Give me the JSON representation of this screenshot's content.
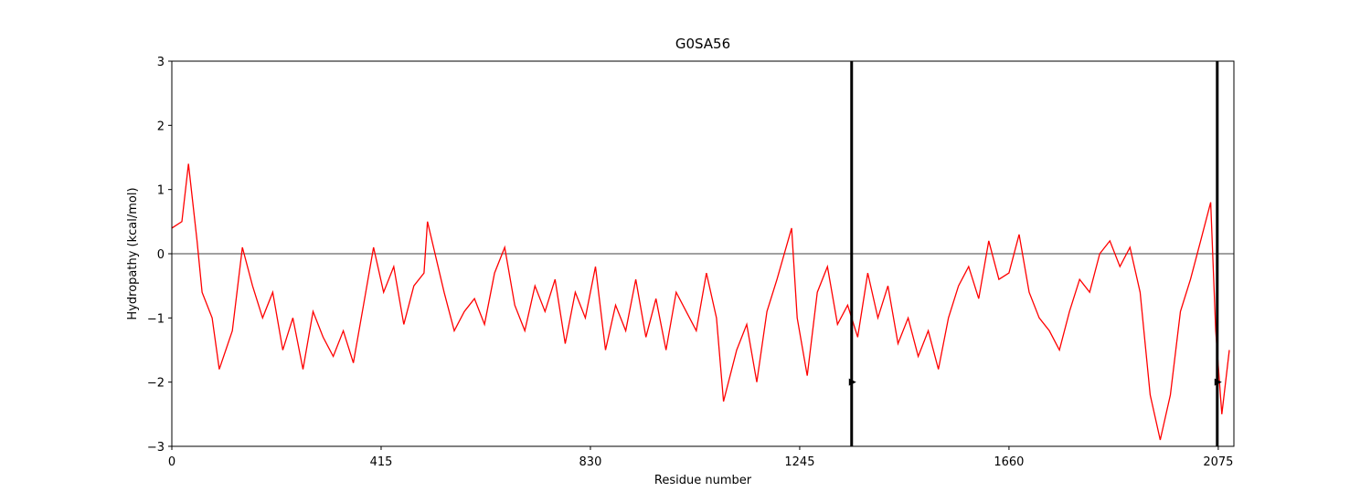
{
  "chart_data": {
    "type": "line",
    "title": "G0SA56",
    "xlabel": "Residue number",
    "ylabel": "Hydropathy (kcal/mol)",
    "x": [
      0,
      20,
      33,
      50,
      60,
      80,
      94,
      120,
      140,
      160,
      180,
      200,
      220,
      240,
      260,
      280,
      300,
      320,
      340,
      360,
      380,
      400,
      420,
      440,
      460,
      480,
      500,
      507,
      540,
      560,
      580,
      600,
      620,
      640,
      660,
      680,
      700,
      720,
      740,
      760,
      780,
      800,
      820,
      840,
      860,
      880,
      900,
      920,
      940,
      960,
      980,
      1000,
      1020,
      1040,
      1060,
      1080,
      1094,
      1120,
      1140,
      1160,
      1180,
      1200,
      1229,
      1240,
      1260,
      1280,
      1300,
      1320,
      1340,
      1360,
      1380,
      1400,
      1420,
      1440,
      1460,
      1480,
      1500,
      1520,
      1540,
      1560,
      1580,
      1600,
      1620,
      1640,
      1660,
      1680,
      1700,
      1720,
      1740,
      1760,
      1780,
      1800,
      1820,
      1840,
      1860,
      1880,
      1900,
      1920,
      1940,
      1960,
      1980,
      2000,
      2020,
      2040,
      2060,
      2070,
      2082,
      2097
    ],
    "values": [
      0.4,
      0.5,
      1.4,
      0.2,
      -0.6,
      -1.0,
      -1.8,
      -1.2,
      0.1,
      -0.5,
      -1.0,
      -0.6,
      -1.5,
      -1.0,
      -1.8,
      -0.9,
      -1.3,
      -1.6,
      -1.2,
      -1.7,
      -0.8,
      0.1,
      -0.6,
      -0.2,
      -1.1,
      -0.5,
      -0.3,
      0.5,
      -0.6,
      -1.2,
      -0.9,
      -0.7,
      -1.1,
      -0.3,
      0.1,
      -0.8,
      -1.2,
      -0.5,
      -0.9,
      -0.4,
      -1.4,
      -0.6,
      -1.0,
      -0.2,
      -1.5,
      -0.8,
      -1.2,
      -0.4,
      -1.3,
      -0.7,
      -1.5,
      -0.6,
      -0.9,
      -1.2,
      -0.3,
      -1.0,
      -2.3,
      -1.5,
      -1.1,
      -2.0,
      -0.9,
      -0.4,
      0.4,
      -1.0,
      -1.9,
      -0.6,
      -0.2,
      -1.1,
      -0.8,
      -1.3,
      -0.3,
      -1.0,
      -0.5,
      -1.4,
      -1.0,
      -1.6,
      -1.2,
      -1.8,
      -1.0,
      -0.5,
      -0.2,
      -0.7,
      0.2,
      -0.4,
      -0.3,
      0.3,
      -0.6,
      -1.0,
      -1.2,
      -1.5,
      -0.9,
      -0.4,
      -0.6,
      0.0,
      0.2,
      -0.2,
      0.1,
      -0.6,
      -2.2,
      -2.9,
      -2.2,
      -0.9,
      -0.4,
      0.2,
      0.8,
      -1.2,
      -2.5,
      -1.5
    ],
    "color": "#ff0000",
    "hline": 0,
    "markers": [
      {
        "x": 1348,
        "y": -2
      },
      {
        "x": 2073,
        "y": -2
      }
    ],
    "xlim": [
      0,
      2106
    ],
    "ylim": [
      -3,
      3
    ],
    "xticks": [
      0,
      415,
      830,
      1245,
      1660,
      2075
    ],
    "yticks": [
      {
        "value": -3,
        "label": "−3"
      },
      {
        "value": -2,
        "label": "−2"
      },
      {
        "value": -1,
        "label": "−1"
      },
      0,
      1,
      2,
      3
    ]
  }
}
